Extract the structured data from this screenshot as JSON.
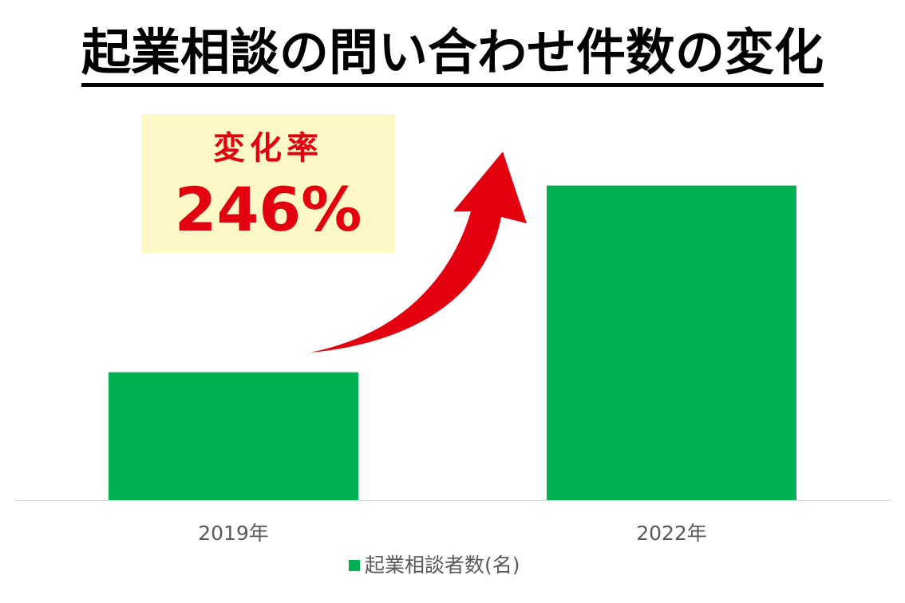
{
  "title": "起業相談の問い合わせ件数の変化",
  "callout": {
    "label": "変化率",
    "value": "246%",
    "text_color": "#e3000f",
    "background": "#fdf8c6"
  },
  "arrow": {
    "icon": "curved-up-arrow-icon",
    "color": "#e3000f"
  },
  "chart_data": {
    "type": "bar",
    "categories": [
      "2019年",
      "2022年"
    ],
    "series": [
      {
        "name": "起業相談者数(名)",
        "values": [
          1.0,
          2.46
        ],
        "color": "#00b050"
      }
    ],
    "title": "起業相談の問い合わせ件数の変化",
    "xlabel": "",
    "ylabel": "",
    "ylim": [
      0,
      3.1
    ],
    "grid": false,
    "legend_position": "bottom",
    "y_tick_labels": "hidden"
  }
}
